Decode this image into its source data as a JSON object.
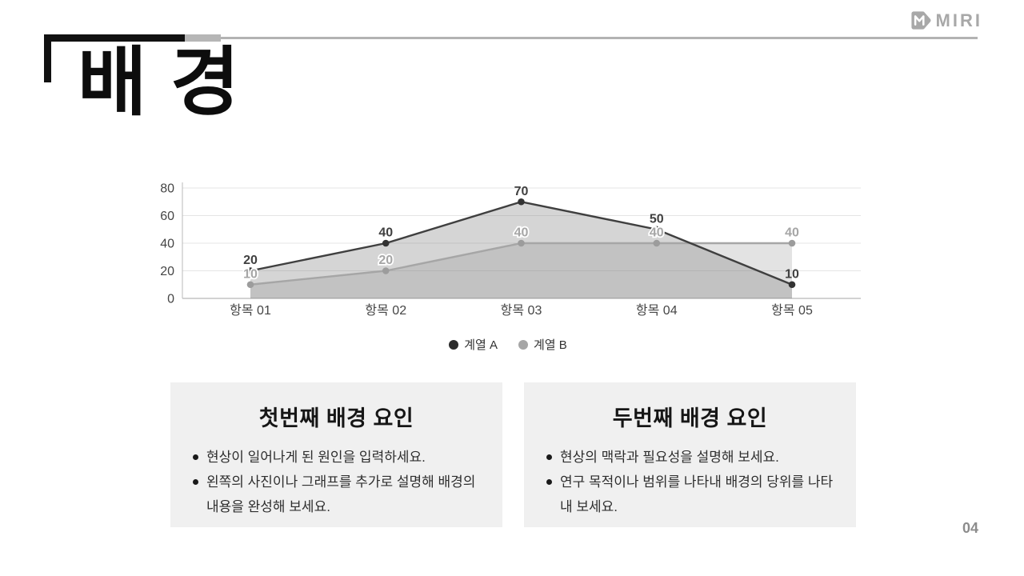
{
  "logo": {
    "text": "MIRI"
  },
  "title": "배 경",
  "page_number": "04",
  "chart_data": {
    "type": "area",
    "title": "",
    "categories": [
      "항목 01",
      "항목 02",
      "항목 03",
      "항목 04",
      "항목 05"
    ],
    "series": [
      {
        "name": "계열 A",
        "values": [
          20,
          40,
          70,
          50,
          10
        ],
        "line_color": "#3f3f3f",
        "marker_color": "#333333",
        "label_color": "#404040",
        "fill_color": "rgba(127,127,127,0.33)",
        "legend_color": "#2b2b2b"
      },
      {
        "name": "계열 B",
        "values": [
          10,
          20,
          40,
          40,
          40
        ],
        "line_color": "#a6a6a6",
        "marker_color": "#9c9c9c",
        "label_color": "#a6a6a6",
        "fill_color": "rgba(127,127,127,0.22)",
        "legend_color": "#a6a6a6"
      }
    ],
    "xlabel": "",
    "ylabel": "",
    "ylim": [
      0,
      80
    ],
    "yticks": [
      0,
      20,
      40,
      60,
      80
    ],
    "grid": true,
    "data_labels": true,
    "legend_position": "bottom",
    "style": {
      "grid_color": "#e4e4e4",
      "axis_color": "#c4c4c4",
      "tick_label_color": "#454545"
    }
  },
  "cards": [
    {
      "title": "첫번째 배경 요인",
      "bullets": [
        "현상이 일어나게 된 원인을 입력하세요.",
        "왼쪽의 사진이나 그래프를 추가로 설명해 배경의 내용을 완성해 보세요."
      ]
    },
    {
      "title": "두번째 배경 요인",
      "bullets": [
        "현상의 맥락과 필요성을 설명해 보세요.",
        "연구 목적이나 범위를 나타내 배경의 당위를 나타내 보세요."
      ]
    }
  ]
}
